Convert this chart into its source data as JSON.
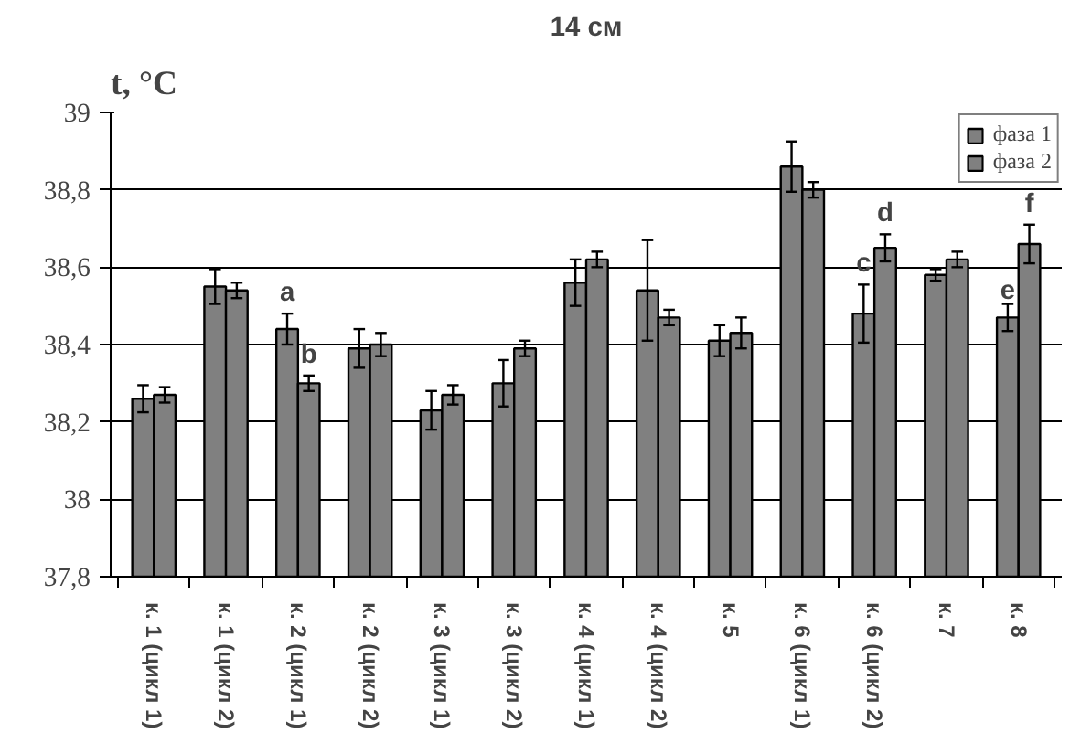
{
  "chart_data": {
    "type": "bar",
    "title": "14 см",
    "ylabel": "t, °C",
    "categories": [
      "к. 1 (цикл 1)",
      "к. 1 (цикл 2)",
      "к. 2 (цикл 1)",
      "к. 2 (цикл 2)",
      "к. 3 (цикл 1)",
      "к. 3 (цикл 2)",
      "к. 4 (цикл 1)",
      "к. 4 (цикл 2)",
      "к. 5",
      "к. 6 (цикл 1)",
      "к. 6 (цикл 2)",
      "к. 7",
      "к. 8"
    ],
    "series": [
      {
        "name": "фаза 1",
        "color": "#808080",
        "values": [
          38.26,
          38.55,
          38.44,
          38.39,
          38.23,
          38.3,
          38.56,
          38.54,
          38.41,
          38.86,
          38.48,
          38.58,
          38.47
        ],
        "errors": [
          0.035,
          0.045,
          0.04,
          0.05,
          0.05,
          0.06,
          0.06,
          0.13,
          0.04,
          0.065,
          0.075,
          0.015,
          0.035
        ]
      },
      {
        "name": "фаза 2",
        "color": "#808080",
        "values": [
          38.27,
          38.54,
          38.3,
          38.4,
          38.27,
          38.39,
          38.62,
          38.47,
          38.43,
          38.8,
          38.65,
          38.62,
          38.66
        ],
        "errors": [
          0.02,
          0.02,
          0.02,
          0.03,
          0.025,
          0.02,
          0.02,
          0.02,
          0.04,
          0.02,
          0.035,
          0.02,
          0.05
        ]
      }
    ],
    "ylim": [
      37.8,
      39
    ],
    "yticks": [
      {
        "value": 37.8,
        "label": "37,8"
      },
      38,
      {
        "value": 38.2,
        "label": "38,2"
      },
      {
        "value": 38.4,
        "label": "38,4"
      },
      {
        "value": 38.6,
        "label": "38,6"
      },
      {
        "value": 38.8,
        "label": "38,8"
      },
      39
    ],
    "grid": "y",
    "legend": "top right",
    "annotations": [
      {
        "text": "a",
        "x": "к. 2 (цикл 1)",
        "y": 38.48
      },
      {
        "text": "b",
        "x": "к. 2 (цикл 1)",
        "y": 38.32
      },
      {
        "text": "c",
        "x": "к. 6 (цикл 2)",
        "y": 38.555
      },
      {
        "text": "d",
        "x": "к. 6 (цикл 2)",
        "y": 38.685
      },
      {
        "text": "e",
        "x": "к. 8",
        "y": 38.505
      },
      {
        "text": "f",
        "x": "к. 8",
        "y": 38.71
      }
    ]
  }
}
